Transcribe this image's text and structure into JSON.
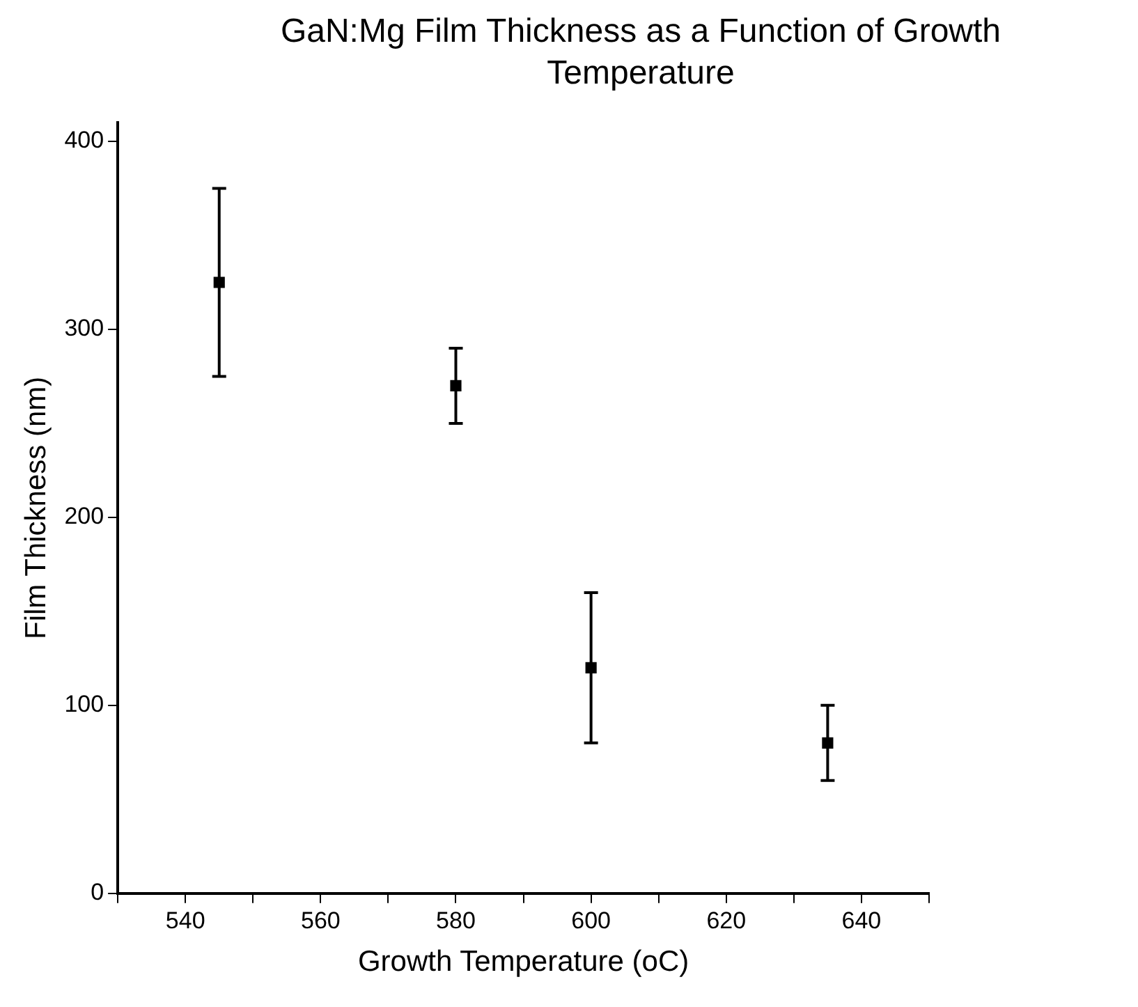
{
  "chart_data": {
    "type": "scatter",
    "title": "GaN:Mg Film Thickness as a Function of Growth Temperature",
    "xlabel": "Growth Temperature (oC)",
    "ylabel": "Film Thickness (nm)",
    "x": [
      545,
      580,
      600,
      635
    ],
    "values": [
      325,
      270,
      120,
      80
    ],
    "errors": [
      [
        275,
        375
      ],
      [
        250,
        290
      ],
      [
        80,
        160
      ],
      [
        60,
        100
      ]
    ],
    "color": "#000000",
    "marker": "square",
    "grid": false,
    "legend": false,
    "xlim": [
      530,
      650
    ],
    "xticks": [
      {
        "value": 530,
        "label": null
      },
      540,
      {
        "value": 550,
        "label": null
      },
      560,
      {
        "value": 570,
        "label": null
      },
      580,
      {
        "value": 590,
        "label": null
      },
      600,
      {
        "value": 610,
        "label": null
      },
      620,
      {
        "value": 630,
        "label": null
      },
      640,
      {
        "value": 650,
        "label": null
      }
    ],
    "ylim": [
      0,
      410
    ],
    "yticks": [
      0,
      100,
      200,
      300,
      400
    ]
  }
}
